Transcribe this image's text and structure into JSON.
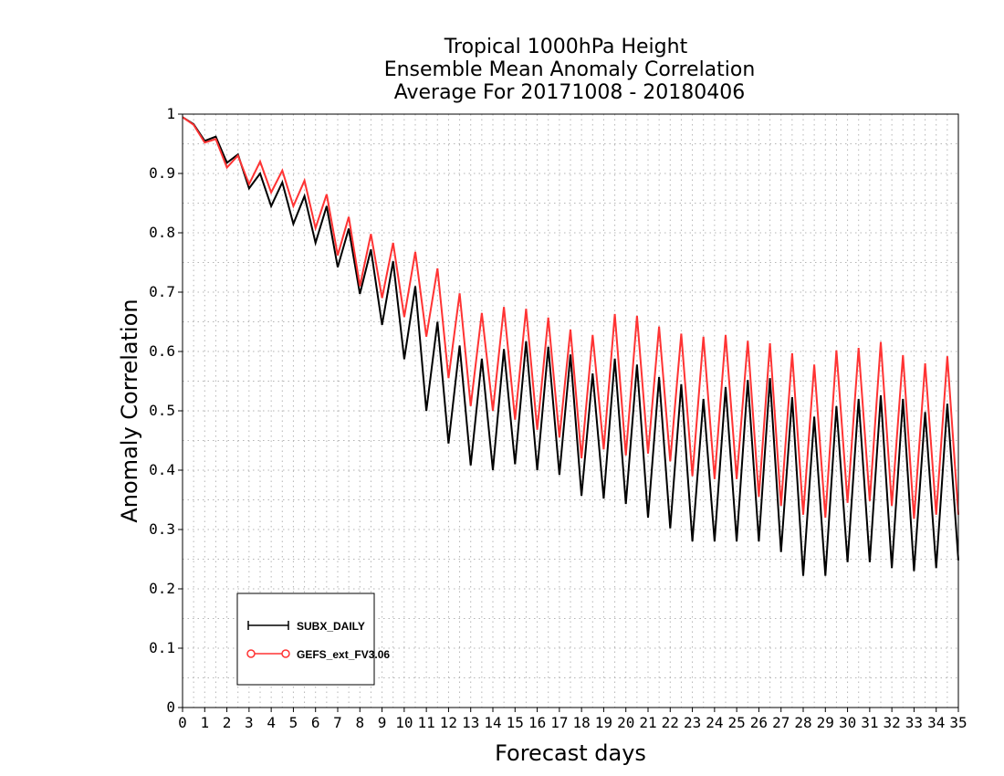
{
  "chart_data": {
    "type": "line",
    "title": [
      "Tropical 1000hPa Height",
      "Ensemble Mean Anomaly Correlation",
      "Average For 20171008 - 20180406"
    ],
    "xlabel": "Forecast days",
    "ylabel": "Anomaly Correlation",
    "xlim": [
      0,
      35
    ],
    "ylim": [
      0,
      1
    ],
    "xticks": [
      "0",
      "1",
      "2",
      "3",
      "4",
      "5",
      "6",
      "7",
      "8",
      "9",
      "10",
      "11",
      "12",
      "13",
      "14",
      "15",
      "16",
      "17",
      "18",
      "19",
      "20",
      "21",
      "22",
      "23",
      "24",
      "25",
      "26",
      "27",
      "28",
      "29",
      "30",
      "31",
      "32",
      "33",
      "34",
      "35"
    ],
    "yticks": [
      "0",
      "0.1",
      "0.2",
      "0.3",
      "0.4",
      "0.5",
      "0.6",
      "0.7",
      "0.8",
      "0.9",
      "1"
    ],
    "grid": true,
    "legend_position": "bottom-left",
    "series": [
      {
        "name": "SUBX_DAILY",
        "color": "#000000",
        "marker": "plus",
        "points": [
          [
            0,
            0.995
          ],
          [
            0.5,
            0.983
          ],
          [
            1,
            0.955
          ],
          [
            1.5,
            0.962
          ],
          [
            2,
            0.918
          ],
          [
            2.5,
            0.932
          ],
          [
            3,
            0.875
          ],
          [
            3.5,
            0.9
          ],
          [
            4,
            0.845
          ],
          [
            4.5,
            0.885
          ],
          [
            5,
            0.815
          ],
          [
            5.5,
            0.862
          ],
          [
            6,
            0.783
          ],
          [
            6.5,
            0.845
          ],
          [
            7,
            0.742
          ],
          [
            7.5,
            0.807
          ],
          [
            8,
            0.697
          ],
          [
            8.5,
            0.772
          ],
          [
            9,
            0.645
          ],
          [
            9.5,
            0.752
          ],
          [
            10,
            0.587
          ],
          [
            10.5,
            0.71
          ],
          [
            11,
            0.5
          ],
          [
            11.5,
            0.65
          ],
          [
            12,
            0.445
          ],
          [
            12.5,
            0.61
          ],
          [
            13,
            0.408
          ],
          [
            13.5,
            0.588
          ],
          [
            14,
            0.4
          ],
          [
            14.5,
            0.604
          ],
          [
            15,
            0.41
          ],
          [
            15.5,
            0.617
          ],
          [
            16,
            0.4
          ],
          [
            16.5,
            0.608
          ],
          [
            17,
            0.392
          ],
          [
            17.5,
            0.595
          ],
          [
            18,
            0.357
          ],
          [
            18.5,
            0.563
          ],
          [
            19,
            0.352
          ],
          [
            19.5,
            0.588
          ],
          [
            20,
            0.343
          ],
          [
            20.5,
            0.578
          ],
          [
            21,
            0.32
          ],
          [
            21.5,
            0.557
          ],
          [
            22,
            0.302
          ],
          [
            22.5,
            0.545
          ],
          [
            23,
            0.28
          ],
          [
            23.5,
            0.52
          ],
          [
            24,
            0.28
          ],
          [
            24.5,
            0.54
          ],
          [
            25,
            0.28
          ],
          [
            25.5,
            0.552
          ],
          [
            26,
            0.28
          ],
          [
            26.5,
            0.555
          ],
          [
            27,
            0.262
          ],
          [
            27.5,
            0.523
          ],
          [
            28,
            0.222
          ],
          [
            28.5,
            0.49
          ],
          [
            29,
            0.222
          ],
          [
            29.5,
            0.508
          ],
          [
            30,
            0.245
          ],
          [
            30.5,
            0.52
          ],
          [
            31,
            0.245
          ],
          [
            31.5,
            0.526
          ],
          [
            32,
            0.235
          ],
          [
            32.5,
            0.52
          ],
          [
            33,
            0.23
          ],
          [
            33.5,
            0.498
          ],
          [
            34,
            0.235
          ],
          [
            34.5,
            0.512
          ],
          [
            35,
            0.248
          ]
        ]
      },
      {
        "name": "GEFS_ext_FV3.06",
        "color": "#ff3333",
        "marker": "circle",
        "points": [
          [
            0,
            0.995
          ],
          [
            0.5,
            0.982
          ],
          [
            1,
            0.952
          ],
          [
            1.5,
            0.958
          ],
          [
            2,
            0.91
          ],
          [
            2.5,
            0.93
          ],
          [
            3,
            0.882
          ],
          [
            3.5,
            0.92
          ],
          [
            4,
            0.868
          ],
          [
            4.5,
            0.905
          ],
          [
            5,
            0.845
          ],
          [
            5.5,
            0.888
          ],
          [
            6,
            0.808
          ],
          [
            6.5,
            0.865
          ],
          [
            7,
            0.762
          ],
          [
            7.5,
            0.827
          ],
          [
            8,
            0.71
          ],
          [
            8.5,
            0.798
          ],
          [
            9,
            0.69
          ],
          [
            9.5,
            0.783
          ],
          [
            10,
            0.658
          ],
          [
            10.5,
            0.768
          ],
          [
            11,
            0.625
          ],
          [
            11.5,
            0.74
          ],
          [
            12,
            0.555
          ],
          [
            12.5,
            0.698
          ],
          [
            13,
            0.508
          ],
          [
            13.5,
            0.665
          ],
          [
            14,
            0.5
          ],
          [
            14.5,
            0.675
          ],
          [
            15,
            0.485
          ],
          [
            15.5,
            0.672
          ],
          [
            16,
            0.468
          ],
          [
            16.5,
            0.657
          ],
          [
            17,
            0.455
          ],
          [
            17.5,
            0.637
          ],
          [
            18,
            0.42
          ],
          [
            18.5,
            0.628
          ],
          [
            19,
            0.435
          ],
          [
            19.5,
            0.663
          ],
          [
            20,
            0.425
          ],
          [
            20.5,
            0.66
          ],
          [
            21,
            0.428
          ],
          [
            21.5,
            0.642
          ],
          [
            22,
            0.415
          ],
          [
            22.5,
            0.63
          ],
          [
            23,
            0.39
          ],
          [
            23.5,
            0.625
          ],
          [
            24,
            0.385
          ],
          [
            24.5,
            0.628
          ],
          [
            25,
            0.385
          ],
          [
            25.5,
            0.618
          ],
          [
            26,
            0.355
          ],
          [
            26.5,
            0.614
          ],
          [
            27,
            0.34
          ],
          [
            27.5,
            0.597
          ],
          [
            28,
            0.325
          ],
          [
            28.5,
            0.578
          ],
          [
            29,
            0.32
          ],
          [
            29.5,
            0.602
          ],
          [
            30,
            0.345
          ],
          [
            30.5,
            0.606
          ],
          [
            31,
            0.348
          ],
          [
            31.5,
            0.616
          ],
          [
            32,
            0.34
          ],
          [
            32.5,
            0.594
          ],
          [
            33,
            0.318
          ],
          [
            33.5,
            0.58
          ],
          [
            34,
            0.325
          ],
          [
            34.5,
            0.592
          ],
          [
            35,
            0.325
          ]
        ]
      }
    ]
  }
}
